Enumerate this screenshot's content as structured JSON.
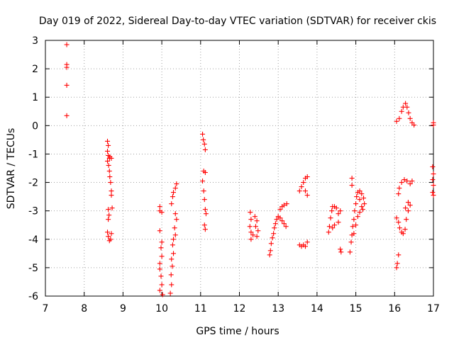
{
  "chart_data": {
    "type": "scatter",
    "title": "Day 019 of 2022, Sidereal Day-to-day VTEC variation (SDTVAR) for receiver ckis",
    "xlabel": "GPS time / hours",
    "ylabel": "SDTVAR / TECUs",
    "xlim": [
      7,
      17
    ],
    "ylim": [
      -6,
      3
    ],
    "xticks": [
      "7",
      "8",
      "9",
      "10",
      "11",
      "12",
      "13",
      "14",
      "15",
      "16",
      "17"
    ],
    "yticks": [
      "3",
      "2",
      "1",
      "0",
      "-1",
      "-2",
      "-3",
      "-4",
      "-5",
      "-6"
    ],
    "grid": true,
    "marker": "+",
    "series": [
      {
        "name": "SDTVAR",
        "color": "#ff0000",
        "points": [
          [
            7.55,
            2.85
          ],
          [
            7.55,
            2.15
          ],
          [
            7.55,
            2.05
          ],
          [
            7.55,
            1.42
          ],
          [
            7.55,
            0.35
          ],
          [
            8.6,
            -0.55
          ],
          [
            8.62,
            -0.7
          ],
          [
            8.6,
            -0.9
          ],
          [
            8.62,
            -1.05
          ],
          [
            8.65,
            -1.15
          ],
          [
            8.6,
            -1.25
          ],
          [
            8.66,
            -1.1
          ],
          [
            8.7,
            -1.15
          ],
          [
            8.63,
            -1.4
          ],
          [
            8.65,
            -1.6
          ],
          [
            8.66,
            -1.8
          ],
          [
            8.68,
            -2.0
          ],
          [
            8.7,
            -2.3
          ],
          [
            8.7,
            -2.45
          ],
          [
            8.72,
            -2.9
          ],
          [
            8.62,
            -2.95
          ],
          [
            8.64,
            -3.15
          ],
          [
            8.62,
            -3.3
          ],
          [
            8.6,
            -3.75
          ],
          [
            8.62,
            -3.9
          ],
          [
            8.65,
            -4.05
          ],
          [
            8.7,
            -3.8
          ],
          [
            8.68,
            -4.0
          ],
          [
            9.95,
            -2.85
          ],
          [
            9.95,
            -3.0
          ],
          [
            10.0,
            -3.05
          ],
          [
            9.95,
            -3.7
          ],
          [
            10.0,
            -4.1
          ],
          [
            9.98,
            -4.3
          ],
          [
            10.0,
            -4.6
          ],
          [
            9.95,
            -4.85
          ],
          [
            9.95,
            -5.05
          ],
          [
            9.98,
            -5.3
          ],
          [
            10.0,
            -5.6
          ],
          [
            9.95,
            -5.8
          ],
          [
            10.02,
            -5.95
          ],
          [
            10.22,
            -5.9
          ],
          [
            10.25,
            -5.6
          ],
          [
            10.24,
            -5.25
          ],
          [
            10.27,
            -4.95
          ],
          [
            10.25,
            -4.7
          ],
          [
            10.3,
            -4.5
          ],
          [
            10.28,
            -4.2
          ],
          [
            10.3,
            -4.0
          ],
          [
            10.35,
            -3.85
          ],
          [
            10.33,
            -3.6
          ],
          [
            10.38,
            -3.3
          ],
          [
            10.35,
            -3.1
          ],
          [
            10.25,
            -2.75
          ],
          [
            10.28,
            -2.5
          ],
          [
            10.3,
            -2.35
          ],
          [
            10.35,
            -2.2
          ],
          [
            10.38,
            -2.05
          ],
          [
            11.05,
            -0.3
          ],
          [
            11.07,
            -0.5
          ],
          [
            11.1,
            -0.65
          ],
          [
            11.12,
            -0.85
          ],
          [
            11.08,
            -1.6
          ],
          [
            11.12,
            -1.65
          ],
          [
            11.05,
            -1.95
          ],
          [
            11.08,
            -2.3
          ],
          [
            11.1,
            -2.6
          ],
          [
            11.12,
            -2.95
          ],
          [
            11.14,
            -3.1
          ],
          [
            11.1,
            -3.5
          ],
          [
            11.12,
            -3.65
          ],
          [
            12.28,
            -3.05
          ],
          [
            12.3,
            -3.3
          ],
          [
            12.27,
            -3.55
          ],
          [
            12.3,
            -3.75
          ],
          [
            12.35,
            -3.85
          ],
          [
            12.3,
            -4.0
          ],
          [
            12.4,
            -3.2
          ],
          [
            12.45,
            -3.35
          ],
          [
            12.42,
            -3.55
          ],
          [
            12.48,
            -3.7
          ],
          [
            12.45,
            -3.9
          ],
          [
            12.78,
            -4.55
          ],
          [
            12.8,
            -4.4
          ],
          [
            12.82,
            -4.15
          ],
          [
            12.85,
            -3.95
          ],
          [
            12.88,
            -3.8
          ],
          [
            12.9,
            -3.6
          ],
          [
            12.93,
            -3.45
          ],
          [
            12.96,
            -3.3
          ],
          [
            13.0,
            -3.2
          ],
          [
            13.05,
            -3.25
          ],
          [
            13.1,
            -3.35
          ],
          [
            13.15,
            -3.45
          ],
          [
            13.2,
            -3.55
          ],
          [
            13.05,
            -2.95
          ],
          [
            13.1,
            -2.85
          ],
          [
            13.15,
            -2.8
          ],
          [
            13.22,
            -2.75
          ],
          [
            13.55,
            -4.2
          ],
          [
            13.6,
            -4.25
          ],
          [
            13.65,
            -4.2
          ],
          [
            13.7,
            -4.25
          ],
          [
            13.75,
            -4.1
          ],
          [
            13.55,
            -2.3
          ],
          [
            13.6,
            -2.15
          ],
          [
            13.65,
            -2.0
          ],
          [
            13.7,
            -1.85
          ],
          [
            13.75,
            -1.8
          ],
          [
            13.7,
            -2.3
          ],
          [
            13.75,
            -2.45
          ],
          [
            14.3,
            -3.75
          ],
          [
            14.32,
            -3.55
          ],
          [
            14.35,
            -3.25
          ],
          [
            14.38,
            -3.0
          ],
          [
            14.4,
            -2.85
          ],
          [
            14.45,
            -2.85
          ],
          [
            14.5,
            -2.9
          ],
          [
            14.55,
            -3.1
          ],
          [
            14.55,
            -3.4
          ],
          [
            14.45,
            -3.5
          ],
          [
            14.4,
            -3.6
          ],
          [
            14.6,
            -3.0
          ],
          [
            14.6,
            -4.35
          ],
          [
            14.62,
            -4.45
          ],
          [
            14.85,
            -4.45
          ],
          [
            14.88,
            -4.1
          ],
          [
            14.9,
            -3.85
          ],
          [
            14.92,
            -3.55
          ],
          [
            14.95,
            -3.3
          ],
          [
            14.97,
            -3.0
          ],
          [
            15.0,
            -2.75
          ],
          [
            15.02,
            -2.5
          ],
          [
            15.05,
            -2.35
          ],
          [
            15.1,
            -2.3
          ],
          [
            15.15,
            -2.4
          ],
          [
            15.2,
            -2.55
          ],
          [
            15.22,
            -2.75
          ],
          [
            15.18,
            -2.95
          ],
          [
            15.1,
            -3.05
          ],
          [
            15.05,
            -3.2
          ],
          [
            15.0,
            -3.5
          ],
          [
            14.95,
            -3.8
          ],
          [
            15.1,
            -2.6
          ],
          [
            15.15,
            -2.85
          ],
          [
            14.9,
            -1.85
          ],
          [
            14.9,
            -2.1
          ],
          [
            16.05,
            -5.0
          ],
          [
            16.07,
            -4.85
          ],
          [
            16.1,
            -4.55
          ],
          [
            16.05,
            -3.25
          ],
          [
            16.1,
            -3.4
          ],
          [
            16.13,
            -3.6
          ],
          [
            16.18,
            -3.75
          ],
          [
            16.22,
            -3.8
          ],
          [
            16.27,
            -3.65
          ],
          [
            16.3,
            -3.3
          ],
          [
            16.35,
            -3.0
          ],
          [
            16.4,
            -2.8
          ],
          [
            16.35,
            -2.7
          ],
          [
            16.28,
            -2.9
          ],
          [
            16.1,
            -2.4
          ],
          [
            16.12,
            -2.2
          ],
          [
            16.18,
            -2.0
          ],
          [
            16.25,
            -1.9
          ],
          [
            16.32,
            -1.95
          ],
          [
            16.4,
            -2.05
          ],
          [
            16.45,
            -1.95
          ],
          [
            16.05,
            0.15
          ],
          [
            16.12,
            0.25
          ],
          [
            16.18,
            0.5
          ],
          [
            16.22,
            0.65
          ],
          [
            16.28,
            0.78
          ],
          [
            16.32,
            0.65
          ],
          [
            16.36,
            0.45
          ],
          [
            16.4,
            0.25
          ],
          [
            16.45,
            0.1
          ],
          [
            16.5,
            0.02
          ],
          [
            16.98,
            -1.45
          ],
          [
            17.0,
            -1.7
          ],
          [
            16.98,
            -1.9
          ],
          [
            17.0,
            -2.1
          ],
          [
            16.98,
            -2.35
          ],
          [
            17.0,
            -2.45
          ],
          [
            17.0,
            0.1
          ],
          [
            17.0,
            0.02
          ]
        ]
      }
    ]
  }
}
